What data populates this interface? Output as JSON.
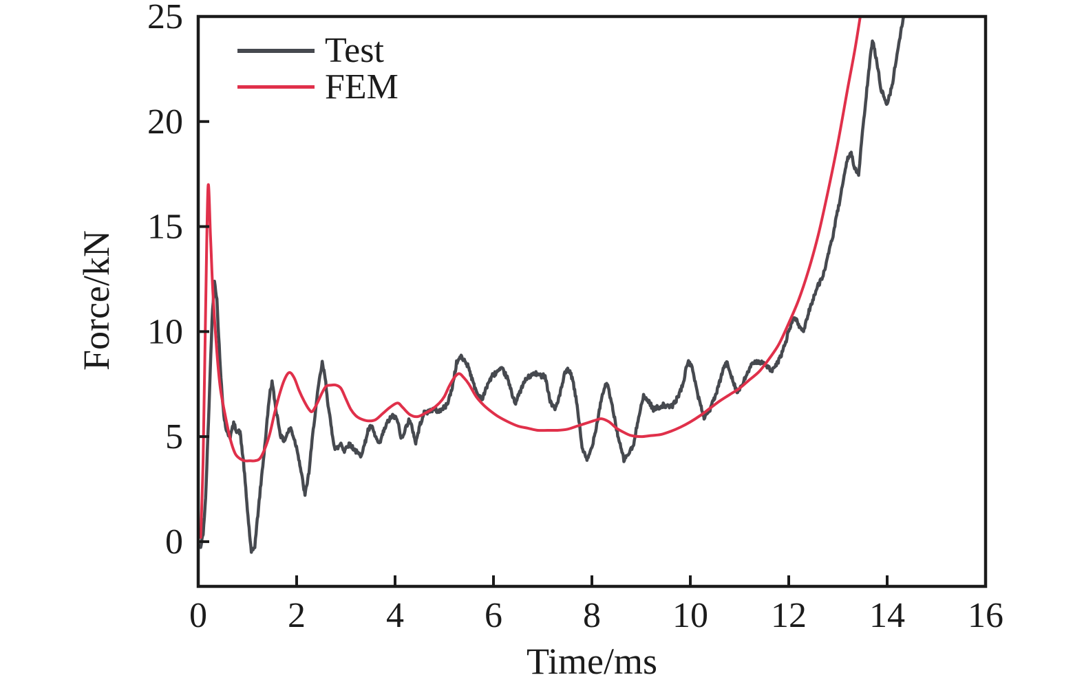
{
  "figure": {
    "background": "#ffffff",
    "axis_color": "#1b1b1b",
    "text_color": "#1b1b1b"
  },
  "chart_data": {
    "type": "line",
    "title": "",
    "xlabel": "Time/ms",
    "ylabel": "Force/kN",
    "xlim": [
      0,
      16
    ],
    "ylim": [
      -2.13,
      25
    ],
    "xticks": [
      0,
      2,
      4,
      6,
      8,
      10,
      12,
      14,
      16
    ],
    "yticks": [
      0,
      5,
      10,
      15,
      20,
      25
    ],
    "grid": false,
    "legend_position": "top-left-inside",
    "noise": {
      "amplitude_kN": 0.11,
      "step_ms": 0.012
    },
    "series": [
      {
        "name": "Test",
        "color": "#46494f",
        "style": "noisy",
        "line_width": 4.5,
        "points": [
          [
            0.05,
            -0.3
          ],
          [
            0.1,
            0.4
          ],
          [
            0.15,
            2.0
          ],
          [
            0.22,
            6.5
          ],
          [
            0.28,
            10.5
          ],
          [
            0.33,
            12.5
          ],
          [
            0.38,
            11.5
          ],
          [
            0.45,
            8.2
          ],
          [
            0.52,
            6.0
          ],
          [
            0.58,
            5.2
          ],
          [
            0.65,
            5.0
          ],
          [
            0.72,
            5.6
          ],
          [
            0.78,
            5.3
          ],
          [
            0.85,
            5.2
          ],
          [
            0.92,
            3.8
          ],
          [
            1.0,
            1.5
          ],
          [
            1.08,
            -0.55
          ],
          [
            1.15,
            -0.2
          ],
          [
            1.25,
            2.2
          ],
          [
            1.35,
            4.5
          ],
          [
            1.45,
            7.0
          ],
          [
            1.5,
            7.6
          ],
          [
            1.58,
            6.3
          ],
          [
            1.68,
            5.0
          ],
          [
            1.75,
            4.8
          ],
          [
            1.82,
            5.2
          ],
          [
            1.88,
            5.4
          ],
          [
            1.95,
            4.9
          ],
          [
            2.02,
            4.3
          ],
          [
            2.1,
            3.2
          ],
          [
            2.17,
            2.2
          ],
          [
            2.25,
            3.3
          ],
          [
            2.35,
            5.6
          ],
          [
            2.45,
            7.5
          ],
          [
            2.52,
            8.5
          ],
          [
            2.58,
            7.8
          ],
          [
            2.65,
            6.3
          ],
          [
            2.72,
            5.2
          ],
          [
            2.78,
            4.4
          ],
          [
            2.85,
            4.5
          ],
          [
            2.9,
            4.7
          ],
          [
            2.97,
            4.3
          ],
          [
            3.03,
            4.6
          ],
          [
            3.1,
            4.6
          ],
          [
            3.17,
            4.4
          ],
          [
            3.24,
            4.2
          ],
          [
            3.3,
            4.1
          ],
          [
            3.38,
            4.6
          ],
          [
            3.45,
            5.3
          ],
          [
            3.52,
            5.5
          ],
          [
            3.6,
            5.0
          ],
          [
            3.68,
            4.6
          ],
          [
            3.76,
            5.2
          ],
          [
            3.85,
            5.7
          ],
          [
            3.95,
            6.0
          ],
          [
            4.05,
            5.8
          ],
          [
            4.12,
            4.9
          ],
          [
            4.2,
            5.3
          ],
          [
            4.28,
            5.8
          ],
          [
            4.35,
            5.4
          ],
          [
            4.42,
            4.7
          ],
          [
            4.5,
            5.5
          ],
          [
            4.58,
            6.1
          ],
          [
            4.68,
            6.2
          ],
          [
            4.78,
            6.3
          ],
          [
            4.88,
            6.2
          ],
          [
            4.95,
            6.3
          ],
          [
            5.05,
            6.5
          ],
          [
            5.15,
            7.2
          ],
          [
            5.25,
            8.5
          ],
          [
            5.33,
            8.8
          ],
          [
            5.42,
            8.6
          ],
          [
            5.5,
            8.3
          ],
          [
            5.58,
            7.6
          ],
          [
            5.68,
            7.0
          ],
          [
            5.78,
            6.8
          ],
          [
            5.88,
            7.5
          ],
          [
            5.98,
            7.9
          ],
          [
            6.08,
            8.1
          ],
          [
            6.18,
            8.2
          ],
          [
            6.28,
            7.8
          ],
          [
            6.38,
            7.0
          ],
          [
            6.45,
            6.6
          ],
          [
            6.55,
            7.2
          ],
          [
            6.65,
            7.7
          ],
          [
            6.75,
            7.9
          ],
          [
            6.85,
            8.0
          ],
          [
            6.95,
            7.9
          ],
          [
            7.05,
            7.9
          ],
          [
            7.15,
            6.7
          ],
          [
            7.25,
            6.3
          ],
          [
            7.35,
            7.0
          ],
          [
            7.45,
            8.0
          ],
          [
            7.52,
            8.2
          ],
          [
            7.6,
            7.8
          ],
          [
            7.7,
            6.5
          ],
          [
            7.8,
            4.5
          ],
          [
            7.9,
            3.85
          ],
          [
            8.0,
            4.5
          ],
          [
            8.1,
            5.6
          ],
          [
            8.2,
            6.9
          ],
          [
            8.3,
            7.6
          ],
          [
            8.38,
            6.8
          ],
          [
            8.45,
            6.0
          ],
          [
            8.55,
            4.8
          ],
          [
            8.65,
            3.9
          ],
          [
            8.75,
            4.2
          ],
          [
            8.85,
            4.6
          ],
          [
            8.95,
            6.0
          ],
          [
            9.05,
            6.9
          ],
          [
            9.15,
            6.7
          ],
          [
            9.25,
            6.3
          ],
          [
            9.35,
            6.4
          ],
          [
            9.45,
            6.5
          ],
          [
            9.55,
            6.4
          ],
          [
            9.65,
            6.5
          ],
          [
            9.75,
            6.9
          ],
          [
            9.85,
            7.5
          ],
          [
            9.95,
            8.6
          ],
          [
            10.05,
            8.2
          ],
          [
            10.15,
            7.0
          ],
          [
            10.28,
            5.9
          ],
          [
            10.4,
            6.3
          ],
          [
            10.55,
            7.2
          ],
          [
            10.68,
            8.3
          ],
          [
            10.75,
            8.5
          ],
          [
            10.85,
            7.8
          ],
          [
            10.95,
            7.1
          ],
          [
            11.05,
            7.4
          ],
          [
            11.15,
            8.0
          ],
          [
            11.25,
            8.4
          ],
          [
            11.35,
            8.6
          ],
          [
            11.45,
            8.5
          ],
          [
            11.55,
            8.4
          ],
          [
            11.65,
            8.1
          ],
          [
            11.75,
            8.4
          ],
          [
            11.85,
            8.9
          ],
          [
            11.95,
            9.6
          ],
          [
            12.05,
            10.4
          ],
          [
            12.12,
            10.7
          ],
          [
            12.2,
            10.3
          ],
          [
            12.3,
            10.0
          ],
          [
            12.4,
            10.9
          ],
          [
            12.5,
            11.6
          ],
          [
            12.6,
            12.2
          ],
          [
            12.7,
            12.7
          ],
          [
            12.8,
            13.6
          ],
          [
            12.9,
            14.6
          ],
          [
            13.0,
            15.8
          ],
          [
            13.1,
            17.0
          ],
          [
            13.2,
            18.3
          ],
          [
            13.27,
            18.5
          ],
          [
            13.35,
            17.7
          ],
          [
            13.42,
            17.5
          ],
          [
            13.5,
            19.5
          ],
          [
            13.6,
            21.8
          ],
          [
            13.7,
            23.9
          ],
          [
            13.78,
            23.0
          ],
          [
            13.88,
            21.5
          ],
          [
            14.0,
            20.8
          ],
          [
            14.1,
            21.7
          ],
          [
            14.2,
            23.2
          ],
          [
            14.3,
            24.6
          ],
          [
            14.38,
            25.7
          ]
        ]
      },
      {
        "name": "FEM",
        "color": "#e0304a",
        "style": "smooth",
        "line_width": 4,
        "points": [
          [
            0.05,
            0.2
          ],
          [
            0.1,
            4.0
          ],
          [
            0.15,
            11.0
          ],
          [
            0.2,
            16.9
          ],
          [
            0.25,
            14.5
          ],
          [
            0.3,
            11.8
          ],
          [
            0.38,
            9.0
          ],
          [
            0.45,
            7.3
          ],
          [
            0.55,
            6.0
          ],
          [
            0.65,
            4.9
          ],
          [
            0.75,
            4.2
          ],
          [
            0.85,
            3.95
          ],
          [
            0.95,
            3.85
          ],
          [
            1.05,
            3.85
          ],
          [
            1.15,
            3.85
          ],
          [
            1.25,
            3.95
          ],
          [
            1.35,
            4.4
          ],
          [
            1.45,
            5.1
          ],
          [
            1.55,
            6.1
          ],
          [
            1.65,
            7.0
          ],
          [
            1.75,
            7.7
          ],
          [
            1.85,
            8.05
          ],
          [
            1.95,
            7.8
          ],
          [
            2.05,
            7.2
          ],
          [
            2.15,
            6.7
          ],
          [
            2.25,
            6.3
          ],
          [
            2.32,
            6.2
          ],
          [
            2.42,
            6.6
          ],
          [
            2.52,
            7.1
          ],
          [
            2.6,
            7.4
          ],
          [
            2.7,
            7.45
          ],
          [
            2.8,
            7.45
          ],
          [
            2.9,
            7.3
          ],
          [
            3.0,
            6.8
          ],
          [
            3.1,
            6.3
          ],
          [
            3.2,
            6.0
          ],
          [
            3.3,
            5.85
          ],
          [
            3.45,
            5.75
          ],
          [
            3.6,
            5.8
          ],
          [
            3.75,
            6.1
          ],
          [
            3.9,
            6.4
          ],
          [
            4.05,
            6.6
          ],
          [
            4.15,
            6.4
          ],
          [
            4.3,
            6.05
          ],
          [
            4.45,
            5.95
          ],
          [
            4.6,
            6.1
          ],
          [
            4.75,
            6.3
          ],
          [
            4.9,
            6.6
          ],
          [
            5.0,
            6.9
          ],
          [
            5.1,
            7.4
          ],
          [
            5.2,
            7.8
          ],
          [
            5.3,
            8.0
          ],
          [
            5.4,
            7.8
          ],
          [
            5.5,
            7.5
          ],
          [
            5.65,
            6.9
          ],
          [
            5.8,
            6.5
          ],
          [
            5.95,
            6.2
          ],
          [
            6.1,
            5.95
          ],
          [
            6.3,
            5.7
          ],
          [
            6.5,
            5.5
          ],
          [
            6.7,
            5.4
          ],
          [
            6.9,
            5.3
          ],
          [
            7.1,
            5.3
          ],
          [
            7.3,
            5.3
          ],
          [
            7.5,
            5.35
          ],
          [
            7.7,
            5.5
          ],
          [
            7.9,
            5.65
          ],
          [
            8.1,
            5.8
          ],
          [
            8.2,
            5.85
          ],
          [
            8.35,
            5.7
          ],
          [
            8.5,
            5.4
          ],
          [
            8.65,
            5.2
          ],
          [
            8.8,
            5.05
          ],
          [
            9.0,
            5.0
          ],
          [
            9.2,
            5.05
          ],
          [
            9.4,
            5.1
          ],
          [
            9.6,
            5.25
          ],
          [
            9.8,
            5.45
          ],
          [
            10.0,
            5.7
          ],
          [
            10.2,
            6.0
          ],
          [
            10.4,
            6.35
          ],
          [
            10.6,
            6.7
          ],
          [
            10.8,
            7.0
          ],
          [
            11.0,
            7.3
          ],
          [
            11.2,
            7.7
          ],
          [
            11.4,
            8.1
          ],
          [
            11.6,
            8.7
          ],
          [
            11.8,
            9.4
          ],
          [
            12.0,
            10.4
          ],
          [
            12.2,
            11.5
          ],
          [
            12.4,
            12.9
          ],
          [
            12.6,
            14.6
          ],
          [
            12.8,
            16.7
          ],
          [
            13.0,
            19.0
          ],
          [
            13.2,
            21.6
          ],
          [
            13.35,
            23.5
          ],
          [
            13.5,
            25.7
          ]
        ]
      }
    ]
  }
}
